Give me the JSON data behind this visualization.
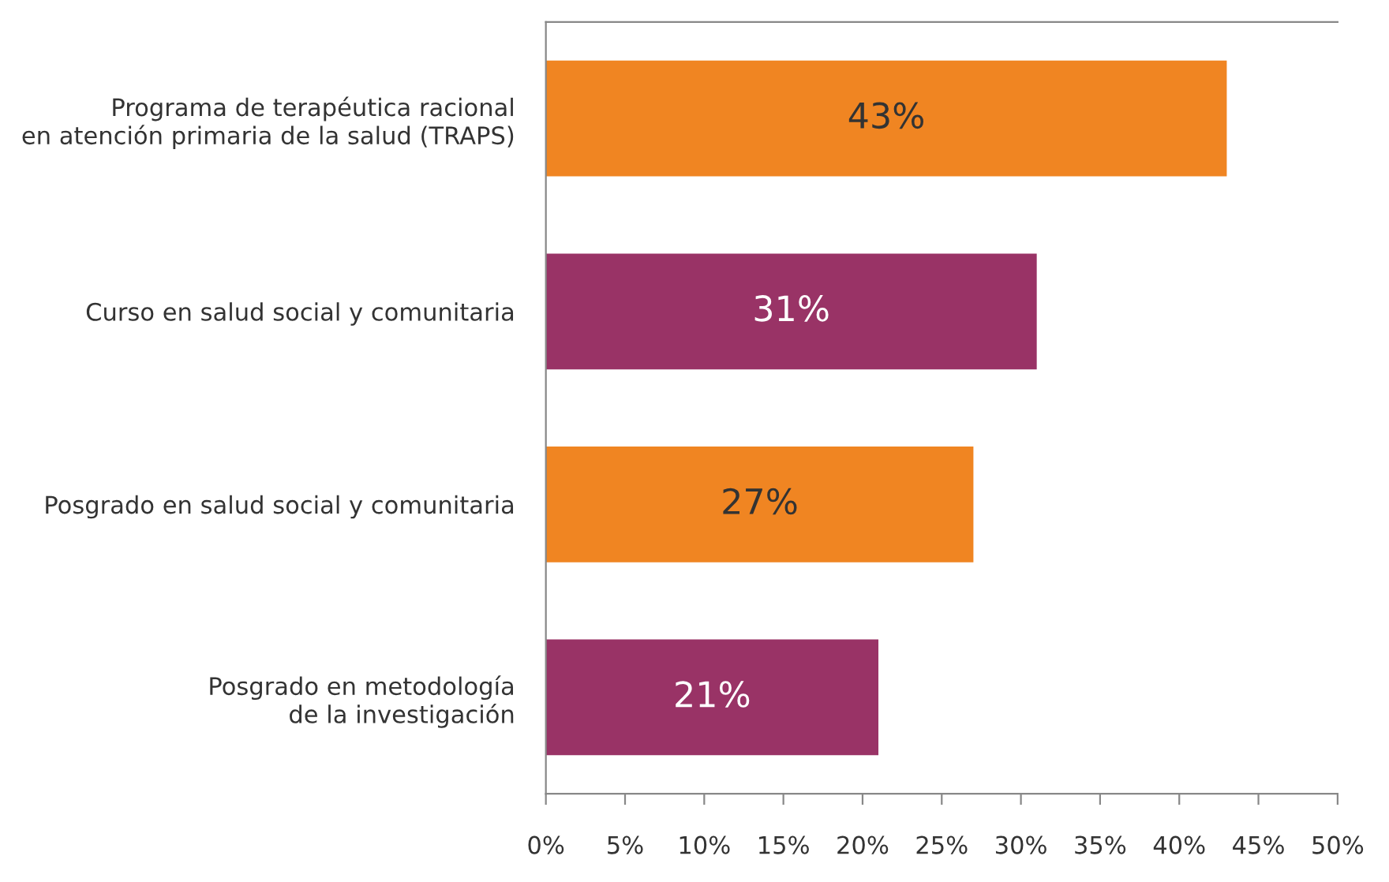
{
  "chart_data": {
    "type": "bar",
    "orientation": "horizontal",
    "categories": [
      "Programa de terapéutica racional\nen atención primaria de la salud (TRAPS)",
      "Curso en salud social y comunitaria",
      "Posgrado en salud social y comunitaria",
      "Posgrado en metodología\nde la investigación"
    ],
    "values": [
      43,
      31,
      27,
      21
    ],
    "colors": [
      "#f08522",
      "#993366",
      "#f08522",
      "#993366"
    ],
    "value_labels": [
      "43%",
      "31%",
      "27%",
      "21%"
    ],
    "xlim": [
      0,
      50
    ],
    "xticks": [
      {
        "value": 0,
        "label": "0%"
      },
      {
        "value": 5,
        "label": "5%"
      },
      {
        "value": 10,
        "label": "10%"
      },
      {
        "value": 15,
        "label": "15%"
      },
      {
        "value": 20,
        "label": "20%"
      },
      {
        "value": 25,
        "label": "25%"
      },
      {
        "value": 30,
        "label": "30%"
      },
      {
        "value": 35,
        "label": "35%"
      },
      {
        "value": 40,
        "label": "40%"
      },
      {
        "value": 45,
        "label": "45%"
      },
      {
        "value": 50,
        "label": "50%"
      }
    ],
    "grid": false,
    "legend": false
  }
}
